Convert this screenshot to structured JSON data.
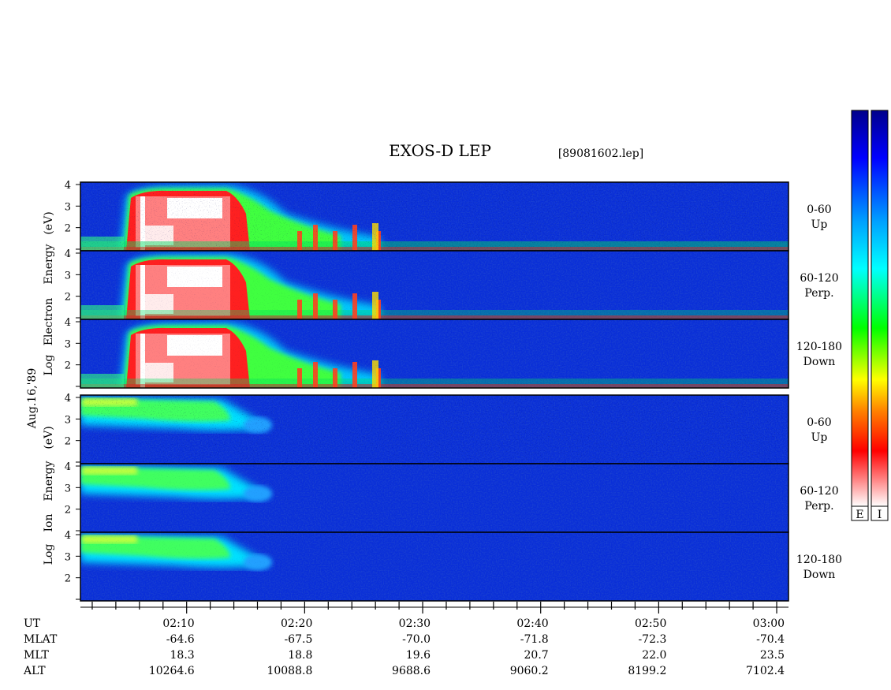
{
  "header": {
    "title": "EXOS-D LEP",
    "file_tag": "[89081602.lep]"
  },
  "date_label": "Aug.16,'89",
  "electron_axis_label": [
    "Log",
    "Electron",
    "Energy",
    "(eV)"
  ],
  "ion_axis_label": [
    "Log",
    "Ion",
    "Energy",
    "(eV)"
  ],
  "colorbars": [
    {
      "label": "E",
      "colors_top_to_bottom": [
        "#00008b",
        "#0000ff",
        "#00a0ff",
        "#00ffff",
        "#00ff00",
        "#ffff00",
        "#ff8000",
        "#ff0000",
        "#ffffff"
      ]
    },
    {
      "label": "I",
      "colors_top_to_bottom": [
        "#00008b",
        "#0000ff",
        "#00a0ff",
        "#00ffff",
        "#00ff00",
        "#ffff00",
        "#ff8000",
        "#ff0000",
        "#ffffff"
      ]
    }
  ],
  "chart_data": {
    "type": "heatmap",
    "title": "EXOS-D LEP",
    "x_axis": {
      "label": "UT",
      "range": [
        "02:01",
        "03:01"
      ],
      "tick_labels": [
        "02:10",
        "02:20",
        "02:30",
        "02:40",
        "02:50",
        "03:00"
      ],
      "tick_minutes": [
        10,
        20,
        30,
        40,
        50,
        60
      ]
    },
    "ylim": [
      1,
      4
    ],
    "y_tick_labels": [
      "2",
      "3",
      "4"
    ],
    "panels": [
      {
        "species": "Electron",
        "pitch": "0-60",
        "direction": "Up"
      },
      {
        "species": "Electron",
        "pitch": "60-120",
        "direction": "Perp."
      },
      {
        "species": "Electron",
        "pitch": "120-180",
        "direction": "Down"
      },
      {
        "species": "Ion",
        "pitch": "0-60",
        "direction": "Up"
      },
      {
        "species": "Ion",
        "pitch": "60-120",
        "direction": "Perp."
      },
      {
        "species": "Ion",
        "pitch": "120-180",
        "direction": "Down"
      }
    ],
    "ephemeris": [
      {
        "name": "MLAT",
        "values": [
          "-64.6",
          "-67.5",
          "-70.0",
          "-71.8",
          "-72.3",
          "-70.4"
        ]
      },
      {
        "name": "MLT",
        "values": [
          "18.3",
          "18.8",
          "19.6",
          "20.7",
          "22.0",
          "23.5"
        ]
      },
      {
        "name": "ALT",
        "values": [
          "10264.6",
          "10088.8",
          "9688.6",
          "9060.2",
          "8199.2",
          "7102.4"
        ]
      }
    ]
  }
}
